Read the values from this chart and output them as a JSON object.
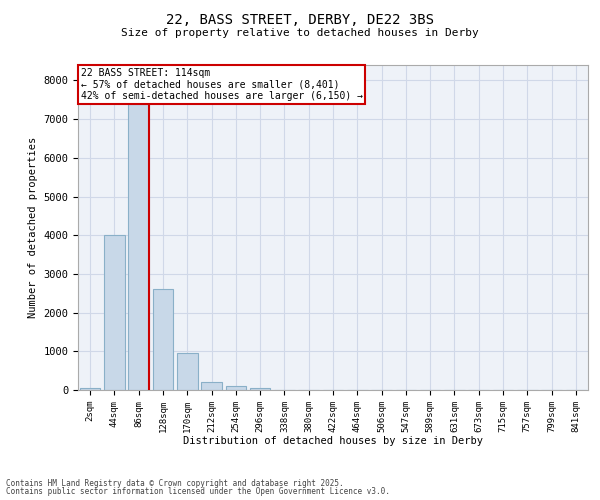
{
  "title_line1": "22, BASS STREET, DERBY, DE22 3BS",
  "title_line2": "Size of property relative to detached houses in Derby",
  "xlabel": "Distribution of detached houses by size in Derby",
  "ylabel": "Number of detached properties",
  "categories": [
    "2sqm",
    "44sqm",
    "86sqm",
    "128sqm",
    "170sqm",
    "212sqm",
    "254sqm",
    "296sqm",
    "338sqm",
    "380sqm",
    "422sqm",
    "464sqm",
    "506sqm",
    "547sqm",
    "589sqm",
    "631sqm",
    "673sqm",
    "715sqm",
    "757sqm",
    "799sqm",
    "841sqm"
  ],
  "values": [
    50,
    4000,
    7400,
    2600,
    950,
    200,
    100,
    60,
    0,
    0,
    0,
    0,
    0,
    0,
    0,
    0,
    0,
    0,
    0,
    0,
    0
  ],
  "bar_color": "#c8d8e8",
  "bar_edge_color": "#8ab0c8",
  "grid_color": "#d0d8e8",
  "background_color": "#eef2f8",
  "vline_color": "#cc0000",
  "annotation_text": "22 BASS STREET: 114sqm\n← 57% of detached houses are smaller (8,401)\n42% of semi-detached houses are larger (6,150) →",
  "annotation_box_color": "#cc0000",
  "ylim": [
    0,
    8400
  ],
  "yticks": [
    0,
    1000,
    2000,
    3000,
    4000,
    5000,
    6000,
    7000,
    8000
  ],
  "footnote1": "Contains HM Land Registry data © Crown copyright and database right 2025.",
  "footnote2": "Contains public sector information licensed under the Open Government Licence v3.0."
}
